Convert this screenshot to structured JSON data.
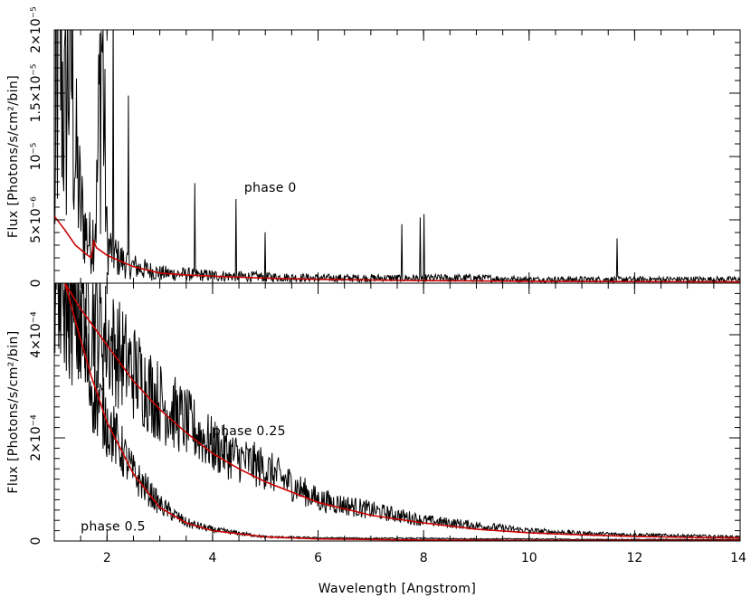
{
  "chart_data": [
    {
      "type": "line",
      "panel": "top",
      "ylabel": "Flux [Photons/s/cm²/bin]",
      "ytick_labels": [
        "0",
        "5×10⁻⁶",
        "10⁻⁵",
        "1.5×10⁻⁵",
        "2×10⁻⁵"
      ],
      "yticks": [
        0,
        5e-06,
        1e-05,
        1.5e-05,
        2e-05
      ],
      "xlim": [
        1,
        14
      ],
      "ylim": [
        0,
        2e-05
      ],
      "annotations": [
        {
          "text": "phase 0",
          "x": 4.6,
          "y": 7.2e-06
        }
      ],
      "series": [
        {
          "kind": "data",
          "color": "#000000",
          "x": [
            1.0,
            1.1,
            1.2,
            1.3,
            1.4,
            1.5,
            1.6,
            1.7,
            1.8,
            1.9,
            2.0,
            2.2,
            2.4,
            2.6,
            2.8,
            3.0,
            3.5,
            4.0,
            5.0,
            6.0,
            7.0,
            8.0,
            9.0,
            10.0,
            11.0,
            12.0,
            13.0,
            14.0
          ],
          "y": [
            5e-06,
            2e-05,
            1.2e-05,
            2e-05,
            1e-05,
            6e-06,
            4e-06,
            3e-06,
            6e-06,
            2e-05,
            3e-06,
            2e-06,
            1.5e-06,
            1.2e-06,
            1e-06,
            8e-07,
            7e-07,
            6e-07,
            5e-07,
            4e-07,
            4e-07,
            4e-07,
            4e-07,
            3e-07,
            3e-07,
            3e-07,
            3e-07,
            3e-07
          ]
        },
        {
          "kind": "model",
          "color": "#cc0000",
          "x": [
            1.0,
            1.2,
            1.4,
            1.6,
            1.7,
            1.75,
            1.8,
            2.0,
            2.5,
            3.0,
            3.5,
            4.0,
            5.0,
            6.0,
            7.0,
            8.0,
            10.0,
            12.0,
            14.0
          ],
          "y": [
            5.3e-06,
            4.2e-06,
            3e-06,
            2.3e-06,
            2e-06,
            3.3e-06,
            2.8e-06,
            2.2e-06,
            1.3e-06,
            8e-07,
            6.5e-07,
            5.5e-07,
            4e-07,
            3e-07,
            2.5e-07,
            2e-07,
            1.5e-07,
            1.2e-07,
            1e-07
          ]
        }
      ]
    },
    {
      "type": "line",
      "panel": "bottom",
      "ylabel": "Flux [Photons/s/cm²/bin]",
      "xlabel": "Wavelength [Angstrom]",
      "ytick_labels": [
        "0",
        "2×10⁻⁴",
        "4×10⁻⁴"
      ],
      "yticks": [
        0,
        0.0002,
        0.0004
      ],
      "xtick_labels": [
        "2",
        "4",
        "6",
        "8",
        "10",
        "12",
        "14"
      ],
      "xticks": [
        2,
        4,
        6,
        8,
        10,
        12,
        14
      ],
      "xlim": [
        1,
        14
      ],
      "ylim": [
        0,
        0.0005
      ],
      "annotations": [
        {
          "text": "phase 0.25",
          "x": 4.0,
          "y": 0.000205
        },
        {
          "text": "phase 0.5",
          "x": 1.5,
          "y": 2e-05
        }
      ],
      "series": [
        {
          "kind": "data",
          "color": "#000000",
          "label": "phase 0.25",
          "x": [
            1.0,
            1.5,
            2.0,
            2.5,
            3.0,
            3.5,
            4.0,
            4.5,
            5.0,
            6.0,
            7.0,
            8.0,
            9.0,
            10.0,
            11.0,
            12.0,
            13.0,
            14.0
          ],
          "y": [
            0.0005,
            0.00048,
            0.00039,
            0.00033,
            0.00027,
            0.00023,
            0.000185,
            0.00016,
            0.00014,
            8e-05,
            6e-05,
            4e-05,
            3e-05,
            2e-05,
            1.5e-05,
            1.2e-05,
            1e-05,
            8e-06
          ]
        },
        {
          "kind": "model",
          "color": "#cc0000",
          "label": "phase 0.25",
          "x": [
            1.2,
            1.5,
            2.0,
            2.5,
            3.0,
            3.5,
            4.0,
            4.5,
            5.0,
            6.0,
            7.0,
            8.0,
            9.0,
            10.0,
            11.0,
            12.0,
            13.0,
            14.0
          ],
          "y": [
            0.0005,
            0.00045,
            0.00038,
            0.00031,
            0.000255,
            0.00021,
            0.00017,
            0.00014,
            0.000115,
            7.5e-05,
            5e-05,
            3.5e-05,
            2.3e-05,
            1.6e-05,
            1.2e-05,
            9e-06,
            7e-06,
            6e-06
          ]
        },
        {
          "kind": "data",
          "color": "#000000",
          "label": "phase 0.5",
          "x": [
            1.0,
            1.5,
            1.7,
            2.0,
            2.5,
            3.0,
            3.5,
            4.0,
            5.0,
            6.0,
            7.0,
            8.0,
            9.0,
            10.0,
            11.0,
            12.0,
            13.0,
            14.0
          ],
          "y": [
            0.0005,
            0.00039,
            0.0003,
            0.00023,
            0.00013,
            7e-05,
            3.5e-05,
            2.2e-05,
            8e-06,
            6e-06,
            5e-06,
            5e-06,
            4e-06,
            4e-06,
            3e-06,
            3e-06,
            3e-06,
            3e-06
          ]
        },
        {
          "kind": "model",
          "color": "#cc0000",
          "label": "phase 0.5",
          "x": [
            1.2,
            1.5,
            1.7,
            1.75,
            1.8,
            2.0,
            2.5,
            3.0,
            3.5,
            4.0,
            5.0,
            6.0,
            7.0,
            8.0,
            10.0,
            12.0,
            14.0
          ],
          "y": [
            0.0005,
            0.00039,
            0.00032,
            0.000305,
            0.00029,
            0.00023,
            0.00013,
            6.5e-05,
            3.5e-05,
            2e-05,
            8e-06,
            4e-06,
            3e-06,
            2e-06,
            1e-06,
            1e-06,
            1e-06
          ]
        }
      ]
    }
  ]
}
